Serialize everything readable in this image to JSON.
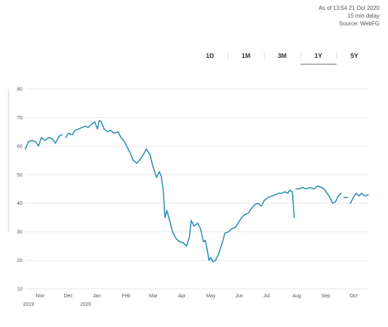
{
  "meta": {
    "as_of": "As of 13:54 21 Oct 2020",
    "delay": "15 min delay",
    "source": "Source: WebFG"
  },
  "tabs": [
    {
      "label": "1D",
      "active": false
    },
    {
      "label": "1M",
      "active": false
    },
    {
      "label": "3M",
      "active": false
    },
    {
      "label": "1Y",
      "active": true
    },
    {
      "label": "5Y",
      "active": false
    }
  ],
  "colors": {
    "line": "#2a8fb0",
    "grid": "#e6e6e6"
  },
  "chart_data": {
    "type": "line",
    "title": "",
    "xlabel": "",
    "ylabel": "",
    "ylim": [
      10,
      80
    ],
    "yticks": [
      10,
      20,
      30,
      40,
      50,
      60,
      70,
      80
    ],
    "grid": true,
    "xlim": [
      "2019-10-21",
      "2020-10-21"
    ],
    "xticks": [
      {
        "date": "2019-11-01",
        "label": "Nov",
        "sublabel": "2019"
      },
      {
        "date": "2019-12-01",
        "label": "Dec",
        "sublabel": ""
      },
      {
        "date": "2020-01-01",
        "label": "Jan",
        "sublabel": "2020"
      },
      {
        "date": "2020-02-01",
        "label": "Feb",
        "sublabel": ""
      },
      {
        "date": "2020-03-01",
        "label": "Mar",
        "sublabel": ""
      },
      {
        "date": "2020-04-01",
        "label": "Apr",
        "sublabel": ""
      },
      {
        "date": "2020-05-01",
        "label": "May",
        "sublabel": ""
      },
      {
        "date": "2020-06-01",
        "label": "Jun",
        "sublabel": ""
      },
      {
        "date": "2020-07-01",
        "label": "Jul",
        "sublabel": ""
      },
      {
        "date": "2020-08-01",
        "label": "Aug",
        "sublabel": ""
      },
      {
        "date": "2020-09-01",
        "label": "Sep",
        "sublabel": ""
      },
      {
        "date": "2020-10-01",
        "label": "Oct",
        "sublabel": ""
      }
    ],
    "series": [
      {
        "segments": [
          [
            [
              "2019-10-21",
              59.0
            ],
            [
              "2019-10-24",
              61.5
            ],
            [
              "2019-10-28",
              62.0
            ],
            [
              "2019-11-01",
              61.5
            ],
            [
              "2019-11-04",
              60.0
            ],
            [
              "2019-11-07",
              63.0
            ],
            [
              "2019-11-11",
              62.0
            ],
            [
              "2019-11-15",
              63.0
            ],
            [
              "2019-11-19",
              62.5
            ],
            [
              "2019-11-22",
              61.0
            ],
            [
              "2019-11-26",
              63.5
            ],
            [
              "2019-11-29",
              64.0
            ]
          ],
          [
            [
              "2019-12-03",
              63.0
            ],
            [
              "2019-12-06",
              64.5
            ],
            [
              "2019-12-10",
              64.0
            ],
            [
              "2019-12-13",
              65.5
            ],
            [
              "2019-12-17",
              66.0
            ],
            [
              "2019-12-20",
              66.5
            ],
            [
              "2019-12-24",
              67.0
            ],
            [
              "2019-12-27",
              66.5
            ],
            [
              "2019-12-30",
              67.5
            ],
            [
              "2020-01-03",
              68.5
            ],
            [
              "2020-01-06",
              66.0
            ],
            [
              "2020-01-08",
              69.0
            ],
            [
              "2020-01-10",
              68.5
            ],
            [
              "2020-01-13",
              66.0
            ],
            [
              "2020-01-17",
              65.0
            ],
            [
              "2020-01-20",
              65.5
            ],
            [
              "2020-01-24",
              64.5
            ],
            [
              "2020-01-28",
              65.0
            ],
            [
              "2020-01-31",
              63.0
            ],
            [
              "2020-02-03",
              62.0
            ],
            [
              "2020-02-06",
              60.0
            ],
            [
              "2020-02-10",
              57.5
            ],
            [
              "2020-02-13",
              55.0
            ],
            [
              "2020-02-17",
              54.0
            ],
            [
              "2020-02-21",
              55.5
            ],
            [
              "2020-02-24",
              57.0
            ],
            [
              "2020-02-27",
              59.0
            ],
            [
              "2020-03-02",
              57.0
            ],
            [
              "2020-03-05",
              53.0
            ],
            [
              "2020-03-09",
              49.0
            ],
            [
              "2020-03-12",
              51.0
            ],
            [
              "2020-03-14",
              49.5
            ],
            [
              "2020-03-16",
              45.0
            ],
            [
              "2020-03-18",
              35.0
            ],
            [
              "2020-03-20",
              37.5
            ],
            [
              "2020-03-23",
              34.0
            ],
            [
              "2020-03-26",
              30.0
            ],
            [
              "2020-03-30",
              27.5
            ],
            [
              "2020-04-03",
              26.5
            ],
            [
              "2020-04-07",
              26.0
            ],
            [
              "2020-04-10",
              25.0
            ],
            [
              "2020-04-13",
              28.0
            ],
            [
              "2020-04-15",
              34.0
            ],
            [
              "2020-04-18",
              32.0
            ],
            [
              "2020-04-22",
              33.0
            ],
            [
              "2020-04-25",
              31.0
            ],
            [
              "2020-04-28",
              26.5
            ],
            [
              "2020-04-30",
              27.0
            ],
            [
              "2020-05-02",
              24.0
            ],
            [
              "2020-05-04",
              20.0
            ],
            [
              "2020-05-06",
              21.0
            ],
            [
              "2020-05-08",
              19.5
            ],
            [
              "2020-05-11",
              20.0
            ],
            [
              "2020-05-14",
              22.0
            ],
            [
              "2020-05-18",
              26.0
            ],
            [
              "2020-05-21",
              29.5
            ],
            [
              "2020-05-25",
              30.0
            ],
            [
              "2020-05-28",
              31.0
            ],
            [
              "2020-06-01",
              31.5
            ],
            [
              "2020-06-04",
              33.0
            ],
            [
              "2020-06-08",
              35.0
            ],
            [
              "2020-06-11",
              36.0
            ],
            [
              "2020-06-15",
              36.5
            ],
            [
              "2020-06-18",
              38.0
            ],
            [
              "2020-06-22",
              39.5
            ],
            [
              "2020-06-25",
              40.0
            ],
            [
              "2020-06-29",
              39.0
            ],
            [
              "2020-07-02",
              41.0
            ],
            [
              "2020-07-06",
              42.0
            ],
            [
              "2020-07-10",
              42.5
            ],
            [
              "2020-07-14",
              43.0
            ],
            [
              "2020-07-17",
              43.5
            ],
            [
              "2020-07-21",
              43.5
            ],
            [
              "2020-07-24",
              44.0
            ],
            [
              "2020-07-27",
              43.5
            ],
            [
              "2020-07-29",
              44.5
            ],
            [
              "2020-08-01",
              44.0
            ],
            [
              "2020-08-03",
              35.0
            ]
          ],
          [
            [
              "2020-08-05",
              45.0
            ],
            [
              "2020-08-08",
              45.0
            ],
            [
              "2020-08-12",
              45.5
            ],
            [
              "2020-08-16",
              45.0
            ],
            [
              "2020-08-20",
              45.5
            ],
            [
              "2020-08-24",
              45.0
            ],
            [
              "2020-08-28",
              46.0
            ],
            [
              "2020-09-01",
              45.5
            ],
            [
              "2020-09-04",
              45.0
            ],
            [
              "2020-09-07",
              43.5
            ],
            [
              "2020-09-10",
              42.0
            ],
            [
              "2020-09-13",
              40.0
            ],
            [
              "2020-09-16",
              40.5
            ],
            [
              "2020-09-19",
              42.5
            ],
            [
              "2020-09-22",
              43.5
            ]
          ],
          [
            [
              "2020-09-25",
              42.0
            ],
            [
              "2020-09-29",
              42.0
            ]
          ],
          [
            [
              "2020-10-02",
              40.0
            ],
            [
              "2020-10-05",
              42.0
            ],
            [
              "2020-10-08",
              43.5
            ],
            [
              "2020-10-11",
              42.5
            ],
            [
              "2020-10-14",
              43.5
            ],
            [
              "2020-10-17",
              42.5
            ],
            [
              "2020-10-21",
              43.0
            ]
          ]
        ]
      }
    ]
  }
}
